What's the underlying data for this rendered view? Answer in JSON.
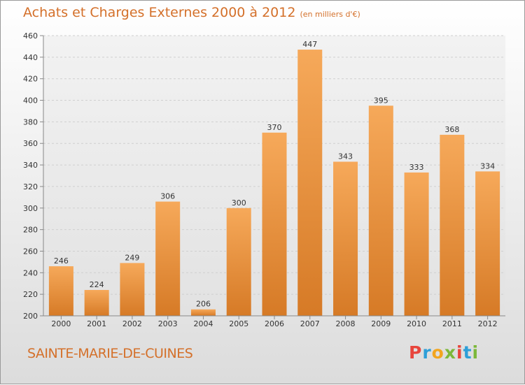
{
  "title": "Achats et Charges Externes 2000 à 2012",
  "unit": "(en milliers d'€)",
  "town": "SAINTE-MARIE-DE-CUINES",
  "logo": {
    "text": "Proxiti",
    "letters": [
      "P",
      "r",
      "o",
      "x",
      "i",
      "t",
      "i"
    ]
  },
  "colors": {
    "bar_top": "#f6a95a",
    "bar_bottom": "#d67a26",
    "text_accent": "#d4702a"
  },
  "chart_data": {
    "type": "bar",
    "categories": [
      "2000",
      "2001",
      "2002",
      "2003",
      "2004",
      "2005",
      "2006",
      "2007",
      "2008",
      "2009",
      "2010",
      "2011",
      "2012"
    ],
    "values": [
      246,
      224,
      249,
      306,
      206,
      300,
      370,
      447,
      343,
      395,
      333,
      368,
      334
    ],
    "ylim": [
      200,
      460
    ],
    "yticks": [
      200,
      220,
      240,
      260,
      280,
      300,
      320,
      340,
      360,
      380,
      400,
      420,
      440,
      460
    ],
    "grid": true,
    "xlabel": "",
    "ylabel": ""
  }
}
